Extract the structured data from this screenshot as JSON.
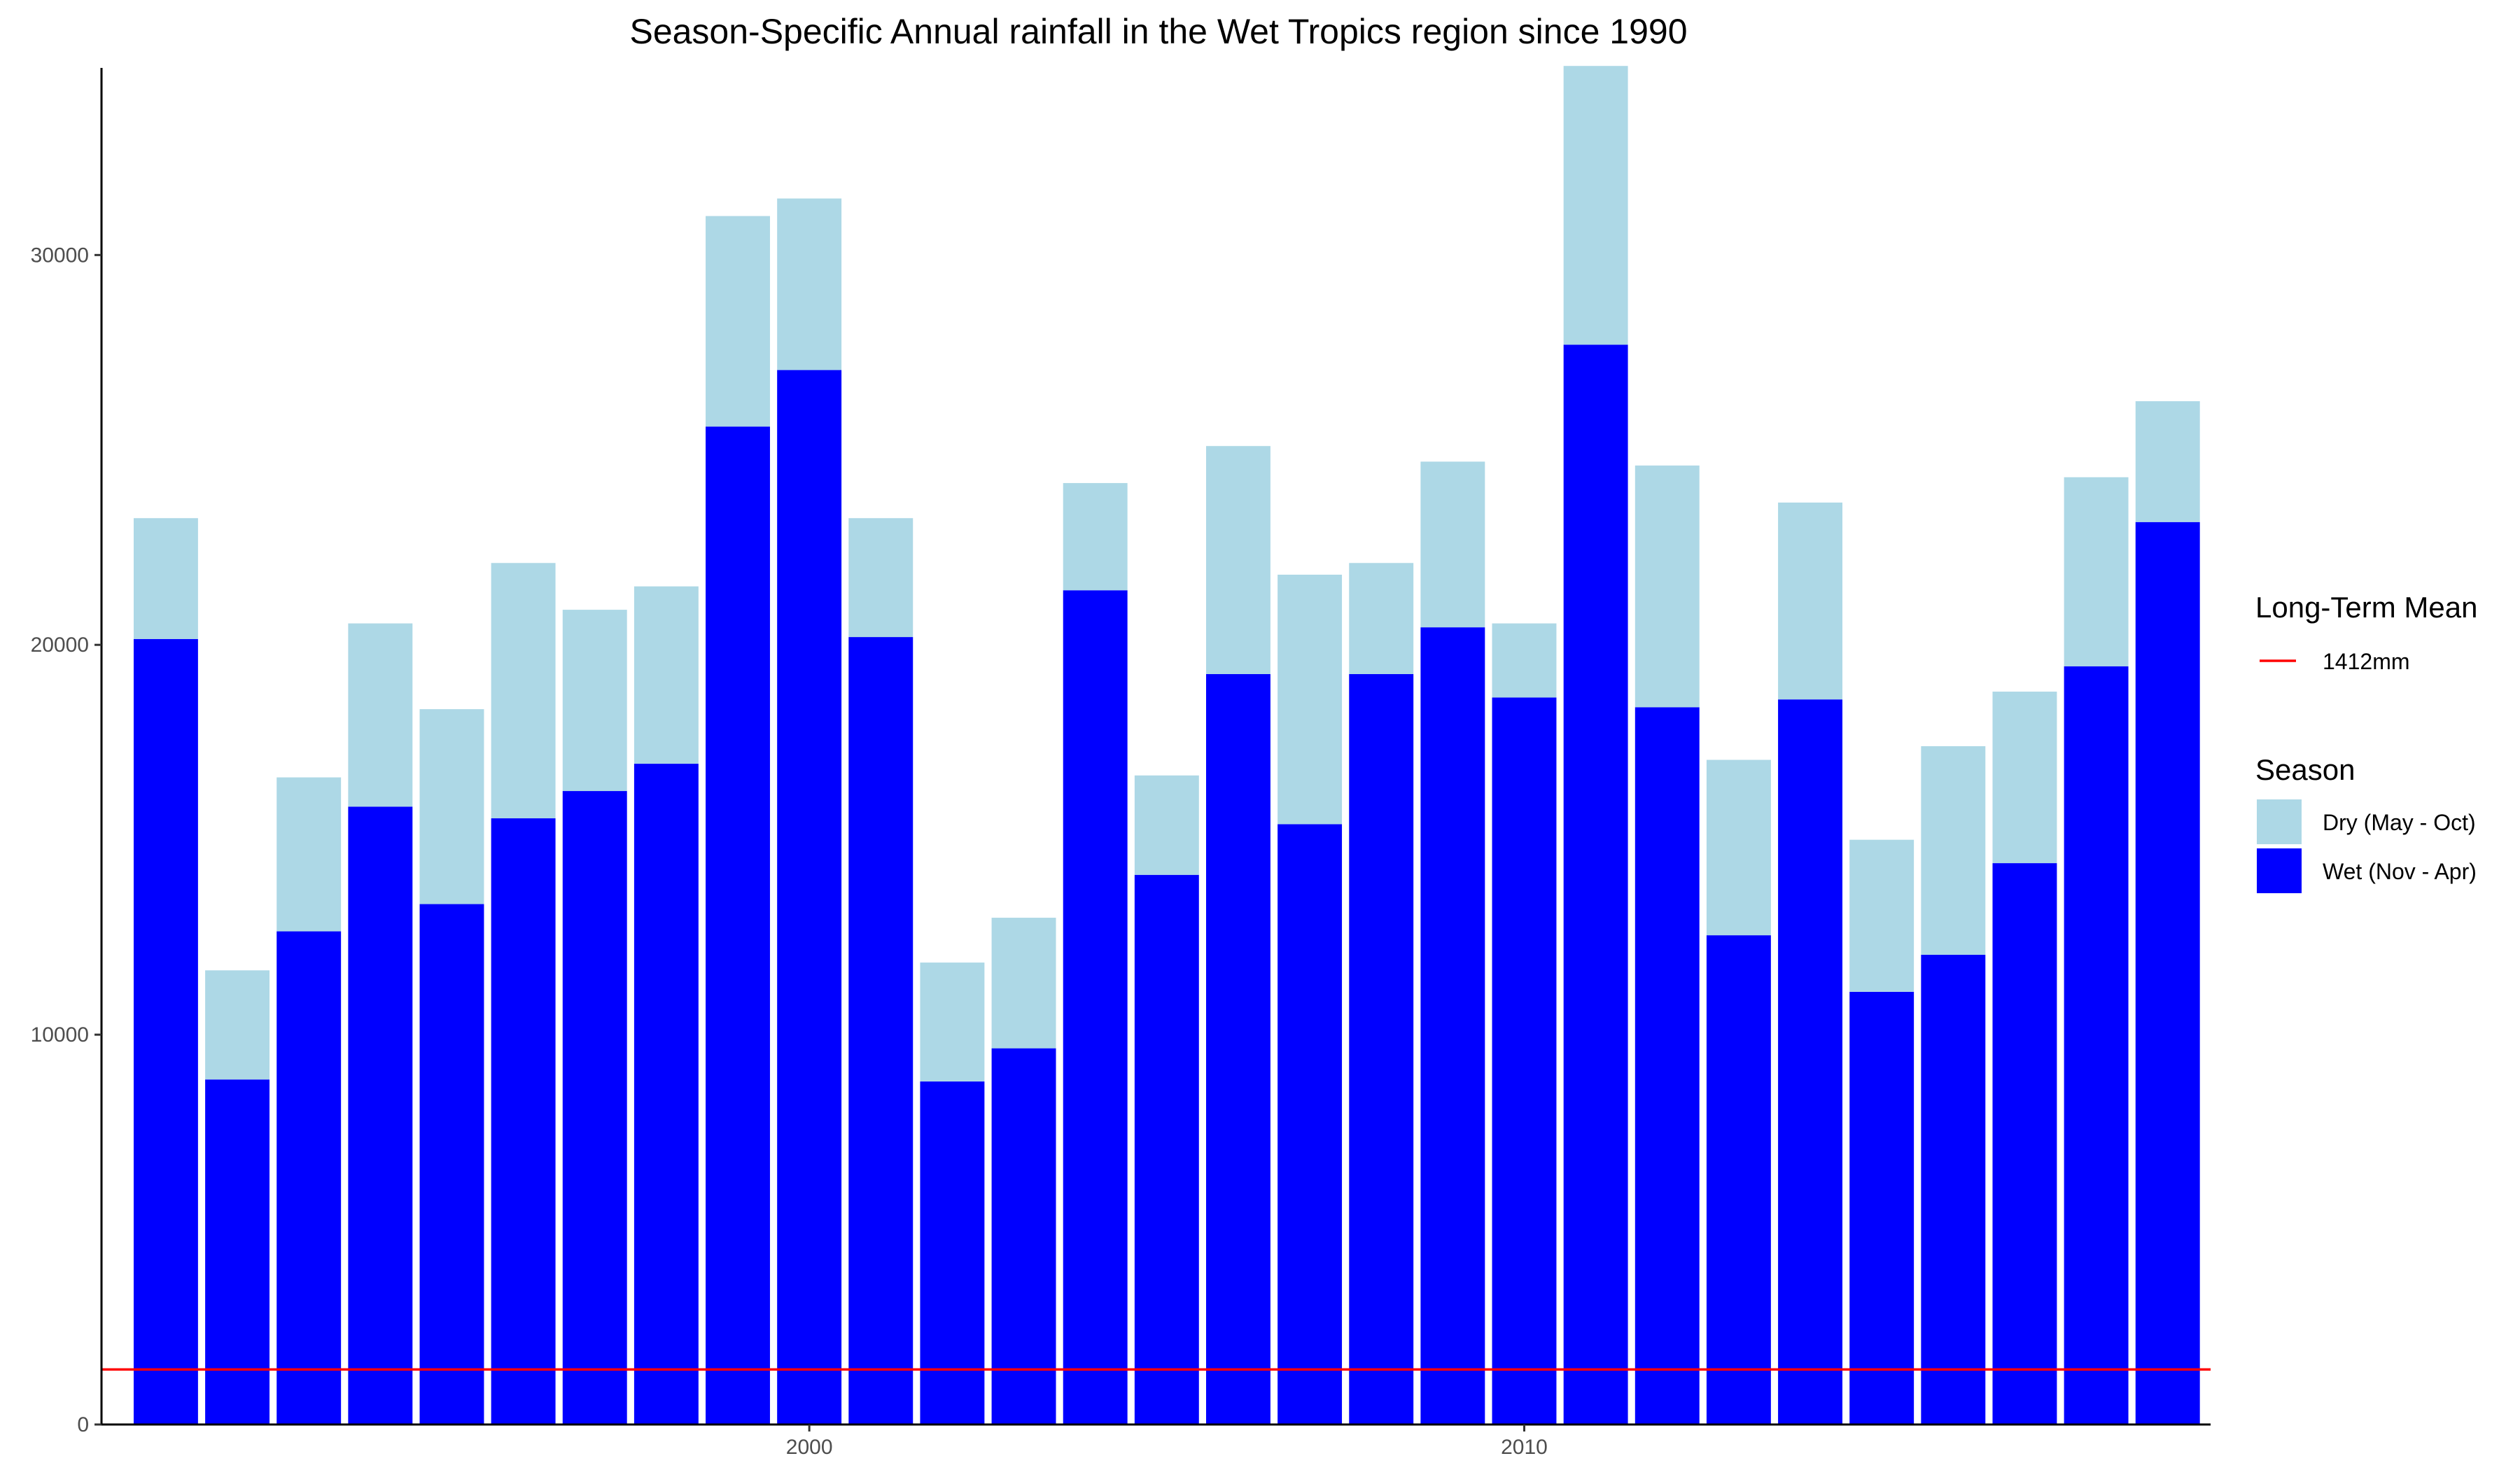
{
  "chart_data": {
    "type": "bar",
    "stacked": true,
    "title": "Season-Specific Annual rainfall in the Wet Tropics region since 1990",
    "xlabel": "",
    "ylabel": "",
    "x": [
      1991,
      1992,
      1993,
      1994,
      1995,
      1996,
      1997,
      1998,
      1999,
      2000,
      2001,
      2002,
      2003,
      2004,
      2005,
      2006,
      2007,
      2008,
      2009,
      2010,
      2011,
      2012,
      2013,
      2014,
      2015,
      2016,
      2017,
      2018,
      2019
    ],
    "series": [
      {
        "name": "Wet (Nov - Apr)",
        "color": "#0000ff",
        "values": [
          20150,
          8850,
          12650,
          15850,
          13350,
          15550,
          16250,
          16950,
          25600,
          27050,
          20200,
          8800,
          9650,
          21400,
          14100,
          19250,
          15400,
          19250,
          20450,
          18650,
          27700,
          18400,
          12550,
          18600,
          11100,
          12050,
          14400,
          19450,
          23150
        ]
      },
      {
        "name": "Dry (May - Oct)",
        "color": "#add8e6",
        "values": [
          3100,
          2800,
          3950,
          4700,
          5000,
          6550,
          4650,
          4550,
          5400,
          4400,
          3050,
          3050,
          3350,
          2750,
          2550,
          5850,
          6400,
          2850,
          4250,
          1900,
          7150,
          6200,
          4500,
          5050,
          3900,
          5350,
          4400,
          4850,
          3100
        ]
      }
    ],
    "reference_line": {
      "value": 1412,
      "label": "1412mm",
      "color": "#ff0000"
    },
    "xlim": [
      1990.1,
      2019.6
    ],
    "xticks": [
      2000,
      2010
    ],
    "ylim": [
      0,
      34800
    ],
    "yticks": [
      0,
      10000,
      20000,
      30000
    ],
    "grid": false,
    "legend_placement": "right",
    "legend": {
      "groups": [
        {
          "title": "Long-Term Mean",
          "entries": [
            {
              "label": "1412mm",
              "kind": "line",
              "color": "#ff0000"
            }
          ]
        },
        {
          "title": "Season",
          "entries": [
            {
              "label": "Dry (May - Oct)",
              "kind": "box",
              "color": "#add8e6"
            },
            {
              "label": "Wet (Nov - Apr)",
              "kind": "box",
              "color": "#0000ff"
            }
          ]
        }
      ]
    }
  }
}
